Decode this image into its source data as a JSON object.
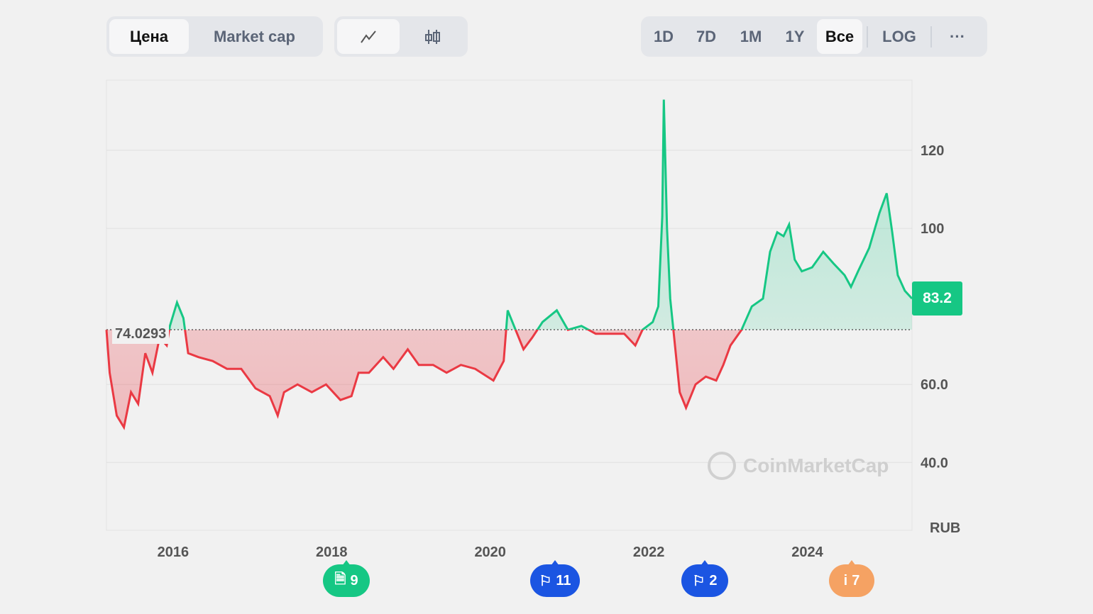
{
  "toolbar": {
    "tabs": [
      "Цена",
      "Market cap"
    ],
    "active_tab": "Цена",
    "chart_types": [
      "line-chart-icon",
      "candlestick-icon"
    ],
    "ranges": [
      "1D",
      "7D",
      "1M",
      "1Y",
      "Все"
    ],
    "active_range": "Все",
    "log": "LOG",
    "more": "···"
  },
  "colors": {
    "up": "#16c784",
    "down": "#ea3943",
    "marker_green": "#16c784",
    "marker_blue": "#1b55e2",
    "marker_orange": "#f5a263"
  },
  "chart_data": {
    "type": "line",
    "currency": "RUB",
    "baseline": 74.0293,
    "baseline_label": "74.0293",
    "current_price": "83.2",
    "watermark": "CoinMarketCap",
    "xlim": [
      2015.16,
      2025.32
    ],
    "ylim": [
      22.6,
      138
    ],
    "y_ticks": [
      40,
      60,
      100,
      120
    ],
    "y_tick_labels": [
      "40.0",
      "60.0",
      "100",
      "120"
    ],
    "x_ticks": [
      2016,
      2018,
      2020,
      2022,
      2024
    ],
    "x_tick_labels": [
      "2016",
      "2018",
      "2020",
      "2022",
      "2024"
    ],
    "x": [
      2015.16,
      2015.2,
      2015.29,
      2015.38,
      2015.47,
      2015.56,
      2015.65,
      2015.74,
      2015.83,
      2015.92,
      2015.96,
      2016.05,
      2016.13,
      2016.19,
      2016.32,
      2016.5,
      2016.68,
      2016.86,
      2017.04,
      2017.22,
      2017.32,
      2017.4,
      2017.57,
      2017.75,
      2017.93,
      2018.11,
      2018.25,
      2018.34,
      2018.47,
      2018.65,
      2018.78,
      2018.96,
      2019.1,
      2019.28,
      2019.45,
      2019.63,
      2019.81,
      2020.04,
      2020.17,
      2020.22,
      2020.3,
      2020.42,
      2020.53,
      2020.66,
      2020.84,
      2020.98,
      2021.15,
      2021.33,
      2021.51,
      2021.69,
      2021.83,
      2021.92,
      2022.05,
      2022.12,
      2022.17,
      2022.19,
      2022.23,
      2022.27,
      2022.32,
      2022.39,
      2022.47,
      2022.59,
      2022.72,
      2022.85,
      2022.94,
      2023.03,
      2023.17,
      2023.3,
      2023.44,
      2023.53,
      2023.62,
      2023.7,
      2023.77,
      2023.84,
      2023.93,
      2024.06,
      2024.2,
      2024.33,
      2024.47,
      2024.55,
      2024.64,
      2024.78,
      2024.91,
      2025.0,
      2025.07,
      2025.14,
      2025.23,
      2025.32
    ],
    "y": [
      74,
      63,
      52,
      49,
      58,
      55,
      68,
      63,
      72,
      70,
      75,
      81,
      77,
      68,
      67,
      66,
      64,
      64,
      59,
      57,
      52,
      58,
      60,
      58,
      60,
      56,
      57,
      63,
      63,
      67,
      64,
      69,
      65,
      65,
      63,
      65,
      64,
      61,
      66,
      79,
      75,
      69,
      72,
      76,
      79,
      74,
      75,
      73,
      73,
      73,
      70,
      74,
      76,
      80,
      103,
      133,
      100,
      82,
      72,
      58,
      54,
      60,
      62,
      61,
      65,
      70,
      74,
      80,
      82,
      94,
      99,
      98,
      101,
      92,
      89,
      90,
      94,
      91,
      88,
      85,
      89,
      95,
      104,
      109,
      99,
      88,
      84,
      82
    ]
  },
  "markers": [
    {
      "icon": "document-icon",
      "count": "9",
      "color": "green"
    },
    {
      "icon": "flag-icon",
      "count": "11",
      "color": "blue"
    },
    {
      "icon": "flag-icon",
      "count": "2",
      "color": "blue"
    },
    {
      "icon": "info-icon",
      "count": "7",
      "color": "orange"
    }
  ]
}
